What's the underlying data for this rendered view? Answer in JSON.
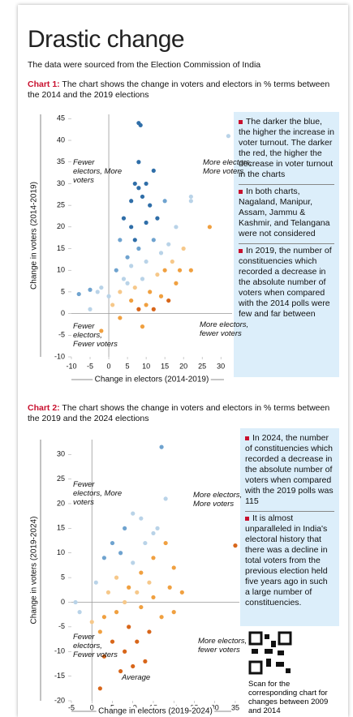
{
  "header": {
    "title": "Drastic change",
    "subtitle": "The data were sourced from the Election Commission of India"
  },
  "chart_data": [
    {
      "type": "scatter",
      "label": "Chart 1:",
      "caption": "The chart shows the change in voters and electors in % terms between the 2014 and the 2019 elections",
      "xlabel": "Change in electors (2014-2019)",
      "ylabel": "Change in voters (2014-2019)",
      "xlim": [
        -10,
        33
      ],
      "ylim": [
        -10,
        46
      ],
      "xticks": [
        -10,
        -5,
        0,
        5,
        10,
        15,
        20,
        25,
        30
      ],
      "yticks": [
        -10,
        -5,
        0,
        5,
        10,
        15,
        20,
        25,
        30,
        35,
        40,
        45
      ],
      "annotations": [
        "Fewer electors, More voters",
        "More electors, More voters",
        "Fewer electors, Fewer voters",
        "More electors, fewer voters"
      ],
      "x": [
        8,
        8.5,
        32,
        22,
        22,
        27,
        -8,
        -5,
        -2,
        -3,
        -2,
        9,
        3,
        -5,
        7,
        8,
        10,
        6,
        9,
        12,
        8,
        11,
        4,
        6,
        10,
        13,
        7,
        3,
        15,
        5,
        8,
        12,
        2,
        6,
        10,
        14,
        4,
        16,
        18,
        9,
        13,
        3,
        7,
        11,
        15,
        17,
        20,
        6,
        10,
        14,
        18,
        22,
        8,
        12,
        16,
        1,
        5,
        0,
        19
      ],
      "values": [
        44,
        43.5,
        41,
        27,
        26,
        20,
        4.5,
        5.5,
        6,
        5,
        -4,
        -3,
        -1,
        1,
        30,
        29,
        30,
        26,
        27,
        33,
        35,
        25,
        22,
        20,
        21,
        22,
        17,
        17,
        26,
        13,
        15,
        17,
        10,
        11,
        12,
        14,
        8,
        16,
        20,
        8,
        9,
        5,
        6,
        5,
        10,
        12,
        15,
        3,
        2,
        4,
        7,
        10,
        1,
        1,
        3,
        2,
        7,
        4,
        10
      ],
      "colors": [
        "#2f6ea8",
        "#2f6ea8",
        "#b9d3e8",
        "#b9d3e8",
        "#b9d3e8",
        "#f0a040",
        "#6fa3cf",
        "#6fa3cf",
        "#b9d3e8",
        "#b9d3e8",
        "#f0a040",
        "#f0a040",
        "#f0a040",
        "#b9d3e8",
        "#2f6ea8",
        "#2f6ea8",
        "#2f6ea8",
        "#2f6ea8",
        "#2f6ea8",
        "#2f6ea8",
        "#2f6ea8",
        "#2f6ea8",
        "#2f6ea8",
        "#2f6ea8",
        "#2f6ea8",
        "#2f6ea8",
        "#2f6ea8",
        "#6fa3cf",
        "#6fa3cf",
        "#6fa3cf",
        "#6fa3cf",
        "#6fa3cf",
        "#6fa3cf",
        "#b9d3e8",
        "#b9d3e8",
        "#b9d3e8",
        "#b9d3e8",
        "#b9d3e8",
        "#b9d3e8",
        "#b9d3e8",
        "#f6c88a",
        "#f6c88a",
        "#f6c88a",
        "#f0a040",
        "#f0a040",
        "#f6c88a",
        "#f6c88a",
        "#f0a040",
        "#f0a040",
        "#f0a040",
        "#f0a040",
        "#f0a040",
        "#d8661a",
        "#d8661a",
        "#d8661a",
        "#f6c88a",
        "#b9d3e8",
        "#b9d3e8",
        "#f0a040"
      ],
      "notes": [
        "The darker the blue, the higher the increase in voter turnout. The darker the red, the higher the decrease in voter turnout in the charts",
        "In both charts, Nagaland, Manipur, Assam, Jammu & Kashmir, and Telangana were not considered",
        "In 2019, the number of constituencies which recorded a decrease in the absolute number of voters when compared with the 2014 polls were few and far between"
      ]
    },
    {
      "type": "scatter",
      "label": "Chart 2:",
      "caption": "The chart shows the change in voters and electors in % terms between the 2019 and the 2024 elections",
      "xlabel": "Change in electors (2019-2024)",
      "ylabel": "Change in voters (2019-2024)",
      "xlim": [
        -5,
        36
      ],
      "ylim": [
        -20,
        33
      ],
      "xticks": [
        -5,
        0,
        5,
        10,
        15,
        20,
        25,
        30,
        35
      ],
      "yticks": [
        -20,
        -15,
        -10,
        -5,
        0,
        5,
        10,
        15,
        20,
        25,
        30
      ],
      "annotations": [
        "Fewer electors, More voters",
        "More electors, More voters",
        "Fewer electors, Fewer voters",
        "More electors, fewer voters",
        "Average"
      ],
      "x": [
        17,
        35,
        18,
        -4,
        -3,
        2,
        15,
        10,
        12,
        8,
        5,
        3,
        1,
        7,
        10,
        13,
        16,
        4,
        6,
        9,
        12,
        15,
        18,
        20,
        3,
        6,
        9,
        12,
        15,
        5,
        8,
        11,
        14,
        17,
        3,
        7,
        10,
        13,
        2,
        20,
        0,
        8,
        11,
        14,
        19,
        22
      ],
      "values": [
        31.5,
        11.5,
        21,
        0,
        -2,
        -17.5,
        14,
        18,
        17,
        15,
        12,
        9,
        4,
        10,
        8,
        12,
        15,
        2,
        5,
        3,
        6,
        9,
        12,
        7,
        -3,
        -2,
        -5,
        -1,
        1,
        -8,
        -10,
        -8,
        -6,
        -3,
        -11,
        -14,
        -13,
        -12,
        -6,
        -2,
        -4,
        0,
        2,
        4,
        3,
        2
      ],
      "colors": [
        "#6fa3cf",
        "#d8661a",
        "#b9d3e8",
        "#b9d3e8",
        "#b9d3e8",
        "#d8661a",
        "#b9d3e8",
        "#b9d3e8",
        "#b9d3e8",
        "#6fa3cf",
        "#6fa3cf",
        "#6fa3cf",
        "#b9d3e8",
        "#6fa3cf",
        "#b9d3e8",
        "#b9d3e8",
        "#b9d3e8",
        "#f6c88a",
        "#f6c88a",
        "#f0a040",
        "#f0a040",
        "#f0a040",
        "#f0a040",
        "#f0a040",
        "#f0a040",
        "#f0a040",
        "#d8661a",
        "#f0a040",
        "#f0a040",
        "#d8661a",
        "#d8661a",
        "#d8661a",
        "#d8661a",
        "#f0a040",
        "#d8661a",
        "#d8661a",
        "#d8661a",
        "#d8661a",
        "#f0a040",
        "#f0a040",
        "#f6c88a",
        "#f6c88a",
        "#f6c88a",
        "#f6c88a",
        "#f0a040",
        "#f0a040"
      ],
      "notes": [
        "In 2024, the number of constituencies which recorded a decrease in the absolute number of voters when compared with the 2019 polls was 115",
        "It is almost unparalleled in India's electoral history that there was a decline in total voters from the previous election held five years ago in such a large number of constituencies."
      ]
    }
  ],
  "footer": {
    "scan": "Scan for the corresponding chart for changes between 2009 and 2014"
  }
}
